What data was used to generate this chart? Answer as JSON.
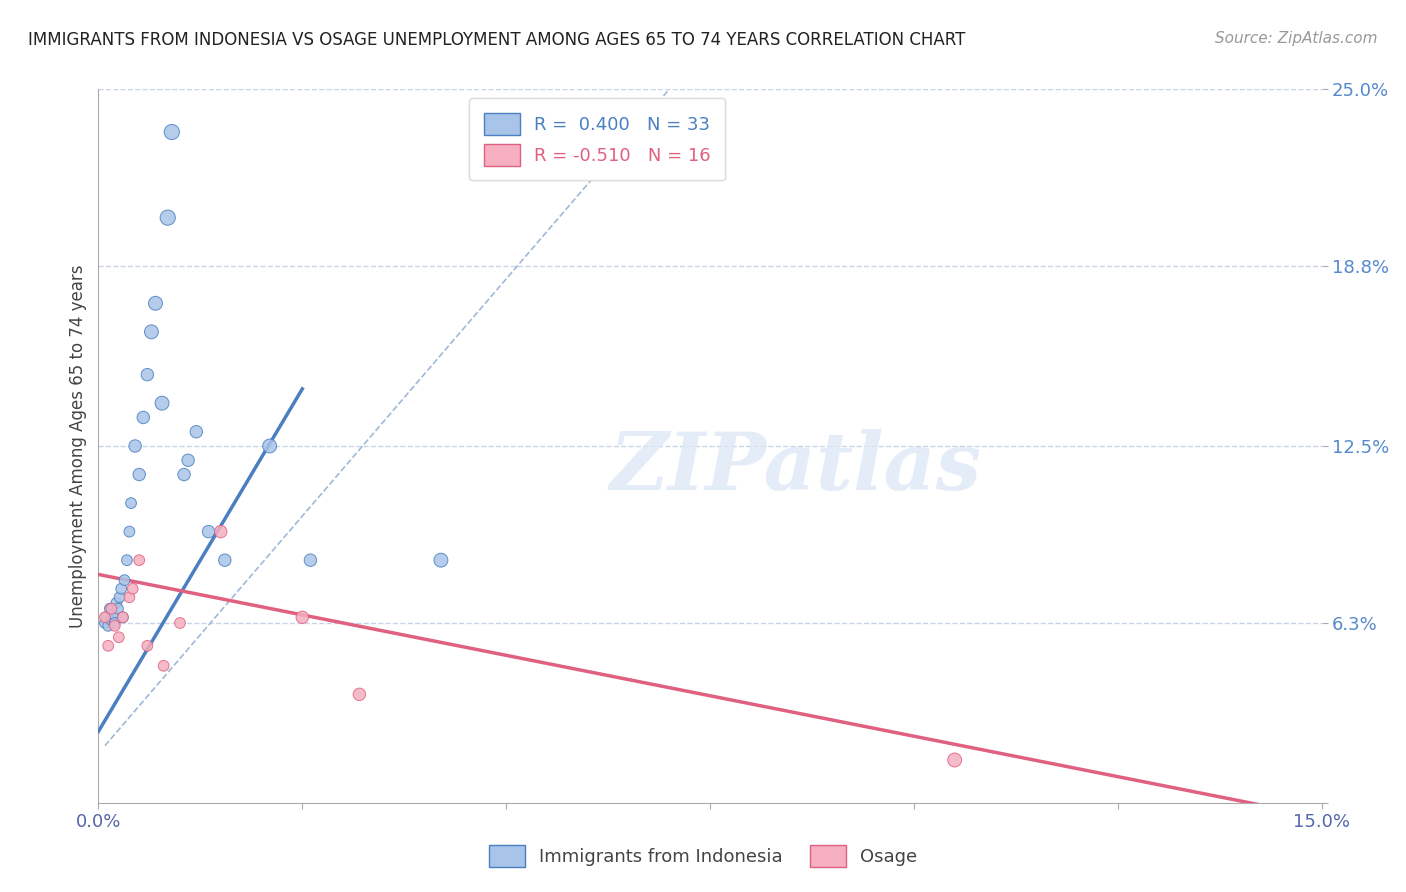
{
  "title": "IMMIGRANTS FROM INDONESIA VS OSAGE UNEMPLOYMENT AMONG AGES 65 TO 74 YEARS CORRELATION CHART",
  "source": "Source: ZipAtlas.com",
  "ylabel": "Unemployment Among Ages 65 to 74 years",
  "xlim": [
    0.0,
    15.0
  ],
  "ylim": [
    0.0,
    25.0
  ],
  "ytick_vals": [
    0.0,
    6.3,
    12.5,
    18.8,
    25.0
  ],
  "ytick_labels": [
    "",
    "6.3%",
    "12.5%",
    "18.8%",
    "25.0%"
  ],
  "watermark": "ZIPatlas",
  "blue_color": "#a8c4e8",
  "pink_color": "#f5afc0",
  "blue_line_color": "#4a7fc1",
  "pink_line_color": "#e06080",
  "dashed_line_color": "#a0b8d8",
  "grid_color": "#c8d4e8",
  "blue_scatter_x": [
    0.08,
    0.1,
    0.12,
    0.14,
    0.16,
    0.18,
    0.2,
    0.22,
    0.24,
    0.26,
    0.28,
    0.3,
    0.32,
    0.35,
    0.38,
    0.4,
    0.45,
    0.5,
    0.55,
    0.6,
    0.65,
    0.7,
    0.78,
    0.85,
    0.9,
    1.05,
    1.1,
    1.2,
    1.35,
    1.55,
    2.1,
    2.6,
    4.2
  ],
  "blue_scatter_y": [
    6.3,
    6.5,
    6.2,
    6.8,
    6.4,
    6.6,
    6.3,
    7.0,
    6.8,
    7.2,
    7.5,
    6.5,
    7.8,
    8.5,
    9.5,
    10.5,
    12.5,
    11.5,
    13.5,
    15.0,
    16.5,
    17.5,
    14.0,
    20.5,
    23.5,
    11.5,
    12.0,
    13.0,
    9.5,
    8.5,
    12.5,
    8.5,
    8.5
  ],
  "blue_scatter_sizes": [
    60,
    60,
    60,
    60,
    60,
    60,
    60,
    60,
    60,
    60,
    60,
    60,
    60,
    60,
    60,
    60,
    80,
    80,
    80,
    80,
    100,
    100,
    100,
    120,
    120,
    80,
    80,
    80,
    80,
    80,
    100,
    80,
    100
  ],
  "pink_scatter_x": [
    0.08,
    0.12,
    0.16,
    0.2,
    0.25,
    0.3,
    0.38,
    0.42,
    0.5,
    0.6,
    0.8,
    1.0,
    1.5,
    2.5,
    3.2,
    10.5
  ],
  "pink_scatter_y": [
    6.5,
    5.5,
    6.8,
    6.2,
    5.8,
    6.5,
    7.2,
    7.5,
    8.5,
    5.5,
    4.8,
    6.3,
    9.5,
    6.5,
    3.8,
    1.5
  ],
  "pink_scatter_sizes": [
    60,
    60,
    60,
    60,
    60,
    60,
    60,
    60,
    60,
    60,
    60,
    60,
    80,
    80,
    80,
    100
  ],
  "blue_line_x": [
    0.0,
    2.5
  ],
  "blue_line_y": [
    2.5,
    14.5
  ],
  "pink_line_x": [
    0.0,
    15.0
  ],
  "pink_line_y": [
    8.0,
    -0.5
  ],
  "dashed_line_x": [
    0.08,
    7.0
  ],
  "dashed_line_y": [
    2.0,
    25.0
  ]
}
